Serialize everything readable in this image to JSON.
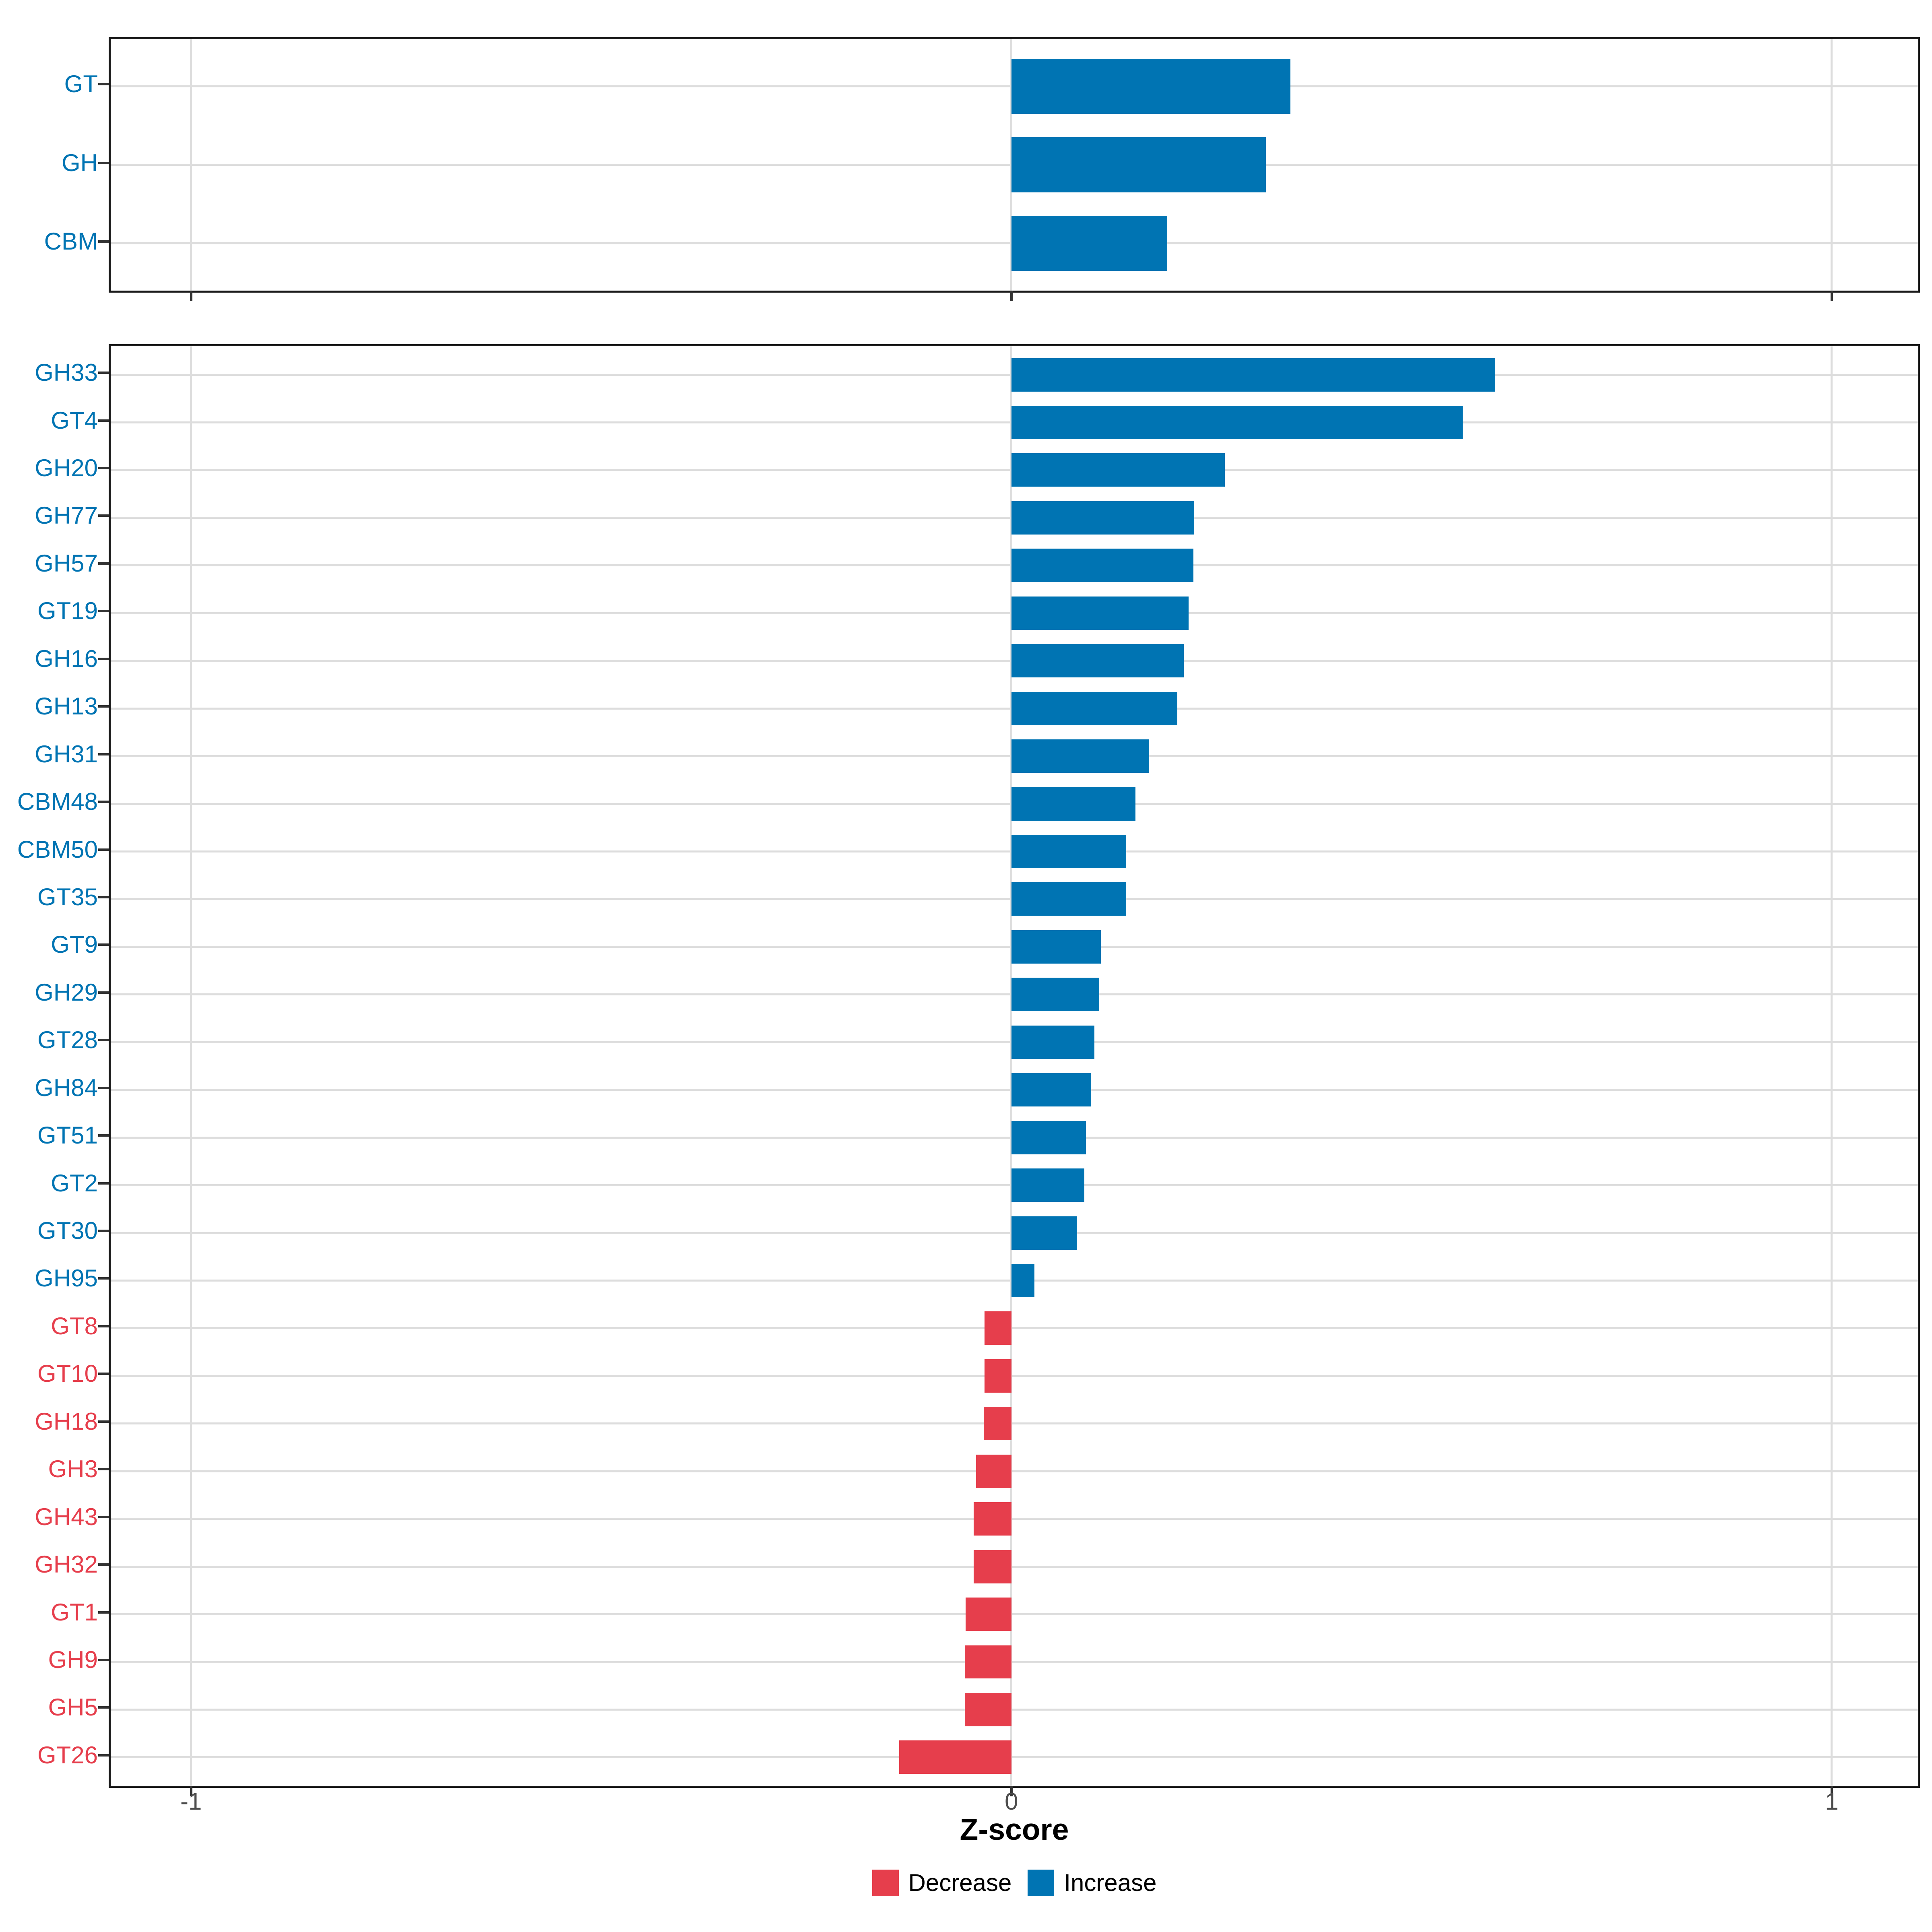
{
  "axis": {
    "label": "Z-score",
    "ticks": [
      "-1",
      "0",
      "1"
    ],
    "tick_values": [
      -1,
      0,
      1
    ],
    "min": -1.098,
    "max": 1.105
  },
  "legend": {
    "items": [
      {
        "label": "Decrease",
        "key": "decrease"
      },
      {
        "label": "Increase",
        "key": "increase"
      }
    ]
  },
  "colors": {
    "increase": "#0074B3",
    "decrease": "#E63E4C",
    "grid": "#DDDDDD",
    "panel_border": "#1A1A1A",
    "axis_tick": "#333333",
    "tick_label": "#4D4D4D"
  },
  "chart_data": [
    {
      "panel": "cazyme-classes-summary",
      "type": "bar",
      "orientation": "horizontal",
      "xlabel": "Z-score",
      "xlim": [
        -1.098,
        1.105
      ],
      "grid": "on",
      "categories": [
        "GT",
        "GH",
        "CBM"
      ],
      "values": [
        0.34,
        0.31,
        0.19
      ],
      "direction": [
        "increase",
        "increase",
        "increase"
      ]
    },
    {
      "panel": "cazyme-families",
      "type": "bar",
      "orientation": "horizontal",
      "xlabel": "Z-score",
      "xlim": [
        -1.098,
        1.105
      ],
      "grid": "on",
      "categories": [
        "GH33",
        "GT4",
        "GH20",
        "GH77",
        "GH57",
        "GT19",
        "GH16",
        "GH13",
        "GH31",
        "CBM48",
        "CBM50",
        "GT35",
        "GT9",
        "GH29",
        "GT28",
        "GH84",
        "GT51",
        "GT2",
        "GT30",
        "GH95",
        "GT8",
        "GT10",
        "GH18",
        "GH3",
        "GH43",
        "GH32",
        "GT1",
        "GH9",
        "GH5",
        "GT26"
      ],
      "values": [
        0.59,
        0.55,
        0.26,
        0.223,
        0.222,
        0.216,
        0.21,
        0.202,
        0.168,
        0.151,
        0.14,
        0.14,
        0.109,
        0.107,
        0.101,
        0.097,
        0.091,
        0.089,
        0.08,
        0.028,
        -0.033,
        -0.033,
        -0.034,
        -0.043,
        -0.046,
        -0.046,
        -0.056,
        -0.057,
        -0.057,
        -0.137
      ],
      "direction": [
        "increase",
        "increase",
        "increase",
        "increase",
        "increase",
        "increase",
        "increase",
        "increase",
        "increase",
        "increase",
        "increase",
        "increase",
        "increase",
        "increase",
        "increase",
        "increase",
        "increase",
        "increase",
        "increase",
        "increase",
        "decrease",
        "decrease",
        "decrease",
        "decrease",
        "decrease",
        "decrease",
        "decrease",
        "decrease",
        "decrease",
        "decrease"
      ]
    }
  ]
}
